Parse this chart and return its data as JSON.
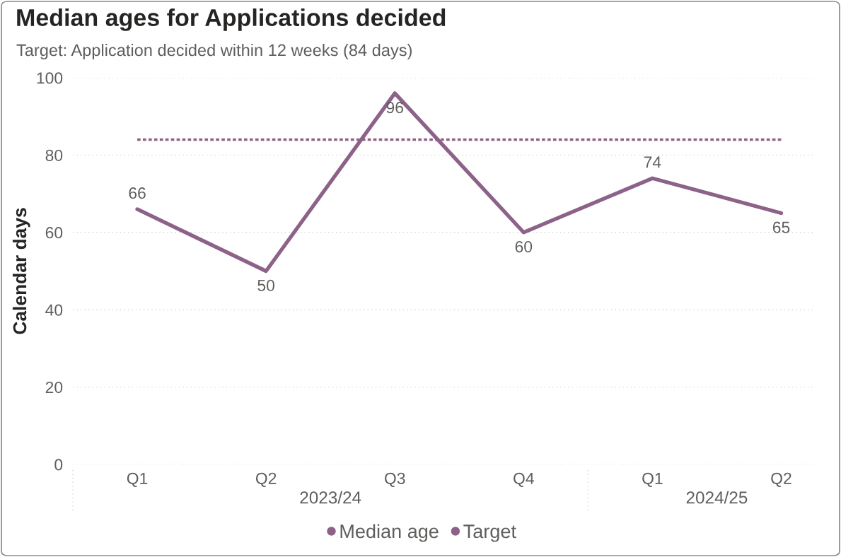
{
  "chart_data": {
    "type": "line",
    "title": "Median ages for Applications decided",
    "subtitle": "Target: Application decided within 12 weeks (84 days)",
    "ylabel": "Calendar days",
    "categories": [
      "Q1",
      "Q2",
      "Q3",
      "Q4",
      "Q1",
      "Q2"
    ],
    "annotations": [
      "2023/24",
      "2024/25"
    ],
    "series": [
      {
        "name": "Median age",
        "color": "#8d6289",
        "values": [
          66,
          50,
          96,
          60,
          74,
          65
        ],
        "value_labels": [
          "66",
          "50",
          "96",
          "60",
          "74",
          "65"
        ],
        "line_style": "solid"
      },
      {
        "name": "Target",
        "color": "#8d6289",
        "values": [
          84,
          84,
          84,
          84,
          84,
          84
        ],
        "line_style": "dotted"
      }
    ],
    "ylim": [
      0,
      100
    ],
    "yticks": [
      0,
      20,
      40,
      60,
      80,
      100
    ],
    "grid": "y",
    "legend": "bottom"
  }
}
